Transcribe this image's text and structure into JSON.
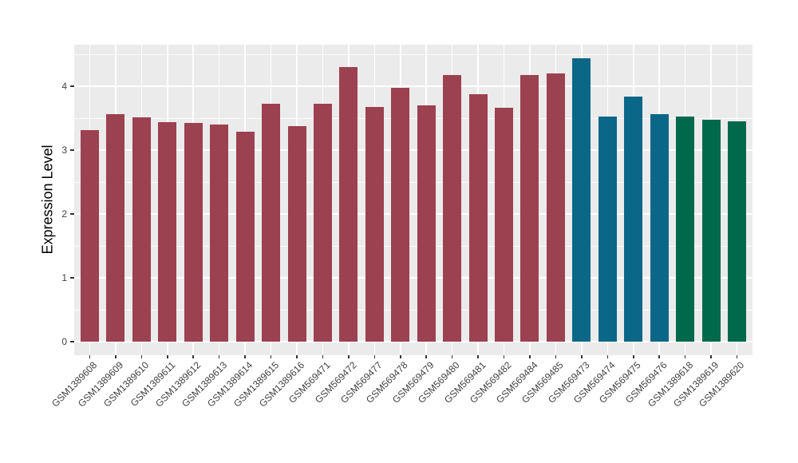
{
  "chart_data": {
    "type": "bar",
    "title": "",
    "xlabel": "",
    "ylabel": "Expression Level",
    "categories": [
      "GSM1389608",
      "GSM1389609",
      "GSM1389610",
      "GSM1389611",
      "GSM1389612",
      "GSM1389613",
      "GSM1389614",
      "GSM1389615",
      "GSM1389616",
      "GSM569471",
      "GSM569472",
      "GSM569477",
      "GSM569478",
      "GSM569479",
      "GSM569480",
      "GSM569481",
      "GSM569482",
      "GSM569484",
      "GSM569485",
      "GSM569473",
      "GSM569474",
      "GSM569475",
      "GSM569476",
      "GSM1389618",
      "GSM1389619",
      "GSM1389620"
    ],
    "values": [
      3.31,
      3.56,
      3.51,
      3.44,
      3.42,
      3.4,
      3.29,
      3.73,
      3.37,
      3.72,
      4.3,
      3.68,
      3.97,
      3.7,
      4.18,
      3.87,
      3.66,
      4.18,
      4.2,
      4.44,
      3.52,
      3.84,
      3.56,
      3.53,
      3.47,
      3.45
    ],
    "bar_colors": [
      "#9C4150",
      "#9C4150",
      "#9C4150",
      "#9C4150",
      "#9C4150",
      "#9C4150",
      "#9C4150",
      "#9C4150",
      "#9C4150",
      "#9C4150",
      "#9C4150",
      "#9C4150",
      "#9C4150",
      "#9C4150",
      "#9C4150",
      "#9C4150",
      "#9C4150",
      "#9C4150",
      "#9C4150",
      "#0B6787",
      "#0B6787",
      "#0B6787",
      "#0B6787",
      "#00694C",
      "#00694C",
      "#00694C"
    ],
    "group_colors": {
      "maroon": "#9C4150",
      "teal_blue": "#0B6787",
      "green": "#00694C"
    },
    "yticks": [
      0,
      1,
      2,
      3,
      4
    ],
    "yticks_minor": [
      0.5,
      1.5,
      2.5,
      3.5,
      4.5
    ],
    "ylim": [
      -0.2,
      4.65
    ],
    "grid": "horizontal major+minor, vertical major per category",
    "legend_position": "none",
    "panel_bg": "#EBEBEB",
    "grid_color": "#FFFFFF",
    "axis_text_color": "#404040",
    "bar_width_ratio": 0.7
  }
}
